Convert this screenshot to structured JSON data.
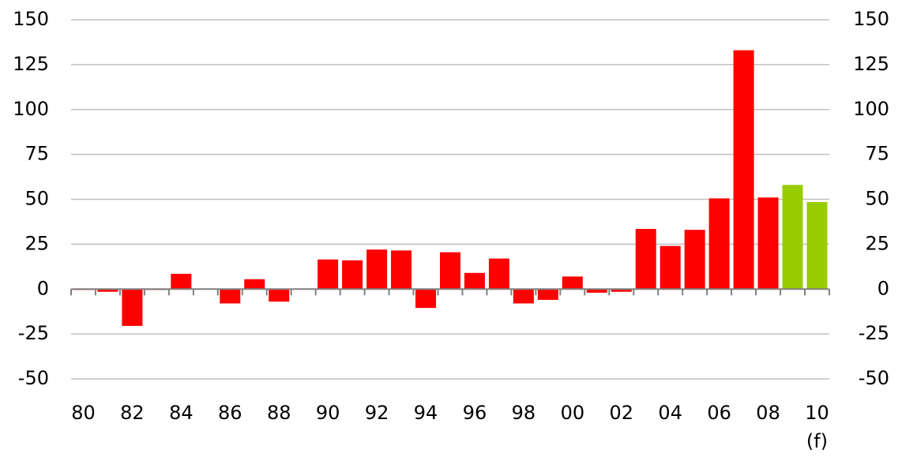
{
  "chart_data": {
    "type": "bar",
    "categories": [
      "80",
      null,
      "82",
      null,
      "84",
      null,
      "86",
      null,
      "88",
      null,
      "90",
      null,
      "92",
      null,
      "94",
      null,
      "96",
      null,
      "98",
      null,
      "00",
      null,
      "02",
      null,
      "04",
      null,
      "06",
      null,
      "08",
      null,
      "10"
    ],
    "values": [
      -0.5,
      -1.5,
      -20.5,
      -0.5,
      8.5,
      0,
      -8,
      5.5,
      -7,
      0,
      16.5,
      16,
      22,
      21.5,
      -10.5,
      20.5,
      9,
      17,
      -8,
      -6,
      7,
      -2,
      -1.5,
      33.5,
      24,
      33,
      50.5,
      133,
      51,
      58,
      48.5
    ],
    "colors": [
      "#ff0000",
      "#ff0000",
      "#ff0000",
      "#ff0000",
      "#ff0000",
      "#ff0000",
      "#ff0000",
      "#ff0000",
      "#ff0000",
      "#ff0000",
      "#ff0000",
      "#ff0000",
      "#ff0000",
      "#ff0000",
      "#ff0000",
      "#ff0000",
      "#ff0000",
      "#ff0000",
      "#ff0000",
      "#ff0000",
      "#ff0000",
      "#ff0000",
      "#ff0000",
      "#ff0000",
      "#ff0000",
      "#ff0000",
      "#ff0000",
      "#ff0000",
      "#ff0000",
      "#99cc00",
      "#99cc00"
    ],
    "annotation": "(f)",
    "ylim": [
      -50,
      150
    ],
    "yticks": [
      -50,
      -25,
      0,
      25,
      50,
      75,
      100,
      125,
      150
    ],
    "y2lim": [
      -50,
      150
    ],
    "y2ticks": [
      -50,
      -25,
      0,
      25,
      50,
      75,
      100,
      125,
      150
    ],
    "grid": true
  }
}
